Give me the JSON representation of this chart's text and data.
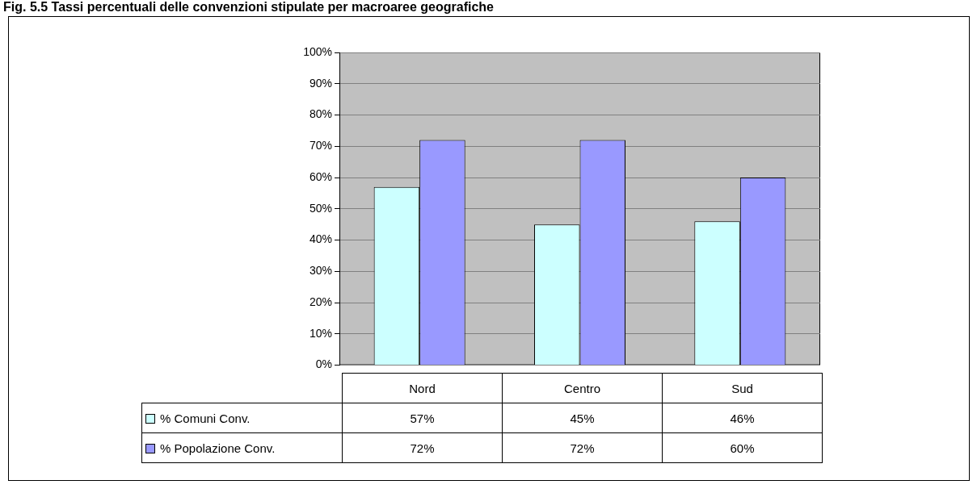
{
  "chart_data": {
    "type": "bar",
    "title": "Fig. 5.5 Tassi percentuali delle convenzioni stipulate per macroaree geografiche",
    "categories": [
      "Nord",
      "Centro",
      "Sud"
    ],
    "series": [
      {
        "name": "% Comuni Conv.",
        "color": "#ccffff",
        "values": [
          57,
          45,
          46
        ],
        "value_labels": [
          "57%",
          "45%",
          "46%"
        ]
      },
      {
        "name": "% Popolazione Conv.",
        "color": "#9999ff",
        "values": [
          72,
          72,
          60
        ],
        "value_labels": [
          "72%",
          "72%",
          "60%"
        ]
      }
    ],
    "ylim": [
      0,
      100
    ],
    "yticks": [
      {
        "value": 0,
        "label": "0%"
      },
      {
        "value": 10,
        "label": "10%"
      },
      {
        "value": 20,
        "label": "20%"
      },
      {
        "value": 30,
        "label": "30%"
      },
      {
        "value": 40,
        "label": "40%"
      },
      {
        "value": 50,
        "label": "50%"
      },
      {
        "value": 60,
        "label": "60%"
      },
      {
        "value": 70,
        "label": "70%"
      },
      {
        "value": 80,
        "label": "80%"
      },
      {
        "value": 90,
        "label": "90%"
      },
      {
        "value": 100,
        "label": "100%"
      }
    ],
    "grid": "y",
    "legend": "bottom"
  }
}
